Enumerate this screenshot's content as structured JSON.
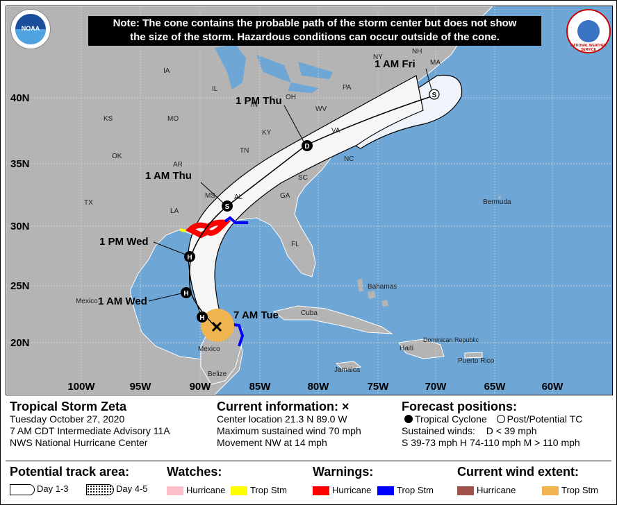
{
  "note": {
    "line1": "Note: The cone contains the probable path of the storm center but does not show",
    "line2": "the size of the storm. Hazardous conditions can occur outside of the cone."
  },
  "logos": {
    "left": "NOAA",
    "right": "NATIONAL WEATHER SERVICE"
  },
  "map": {
    "lat_labels": [
      "40N",
      "35N",
      "30N",
      "25N",
      "20N"
    ],
    "lon_labels": [
      "100W",
      "95W",
      "90W",
      "85W",
      "80W",
      "75W",
      "70W",
      "65W",
      "60W"
    ],
    "states": [
      "NH",
      "NY",
      "MA",
      "PA",
      "OH",
      "IL",
      "IA",
      "IN",
      "WV",
      "MO",
      "KS",
      "KY",
      "VA",
      "TN",
      "NC",
      "OK",
      "AR",
      "SC",
      "MS",
      "AL",
      "GA",
      "TX",
      "LA",
      "FL"
    ],
    "places": [
      "Bermuda",
      "Mexico",
      "Mexico",
      "Bahamas",
      "Cuba",
      "Jamaica",
      "Haiti",
      "Dominican Republic",
      "Puerto Rico",
      "Belize"
    ],
    "forecast_labels": [
      "1 AM Fri",
      "1 PM Thu",
      "1 AM Thu",
      "1 PM Wed",
      "1 AM Wed",
      "7 AM Tue"
    ],
    "markers": [
      "S",
      "D",
      "S",
      "H",
      "H",
      "H"
    ]
  },
  "info": {
    "storm_name": "Tropical Storm Zeta",
    "date": "Tuesday October 27, 2020",
    "advisory": "7 AM CDT Intermediate Advisory 11A",
    "center": "NWS National Hurricane Center"
  },
  "current": {
    "title": "Current information: ×",
    "location": "Center location 21.3 N 89.0 W",
    "wind": "Maximum sustained wind 70 mph",
    "movement": "Movement NW at 14 mph"
  },
  "forecast": {
    "title": "Forecast positions:",
    "tc": "Tropical Cyclone",
    "post_tc": "Post/Potential TC",
    "sustained": "Sustained winds:",
    "d": "D < 39 mph",
    "scale": "S 39-73 mph  H 74-110 mph  M > 110 mph"
  },
  "legend": {
    "track_title": "Potential track area:",
    "day13": "Day 1-3",
    "day45": "Day 4-5",
    "watches_title": "Watches:",
    "warnings_title": "Warnings:",
    "wind_title": "Current wind extent:",
    "hurricane": "Hurricane",
    "trop_stm": "Trop Stm"
  },
  "colors": {
    "ocean": "#6ea6d6",
    "land": "#b4b4b4",
    "hurricane_warning": "#ff0000",
    "ts_warning": "#0000ff",
    "hurricane_watch": "#ffc0cb",
    "ts_watch": "#ffff00",
    "hurricane_wind": "#a0524d",
    "ts_wind": "#f0b450"
  }
}
